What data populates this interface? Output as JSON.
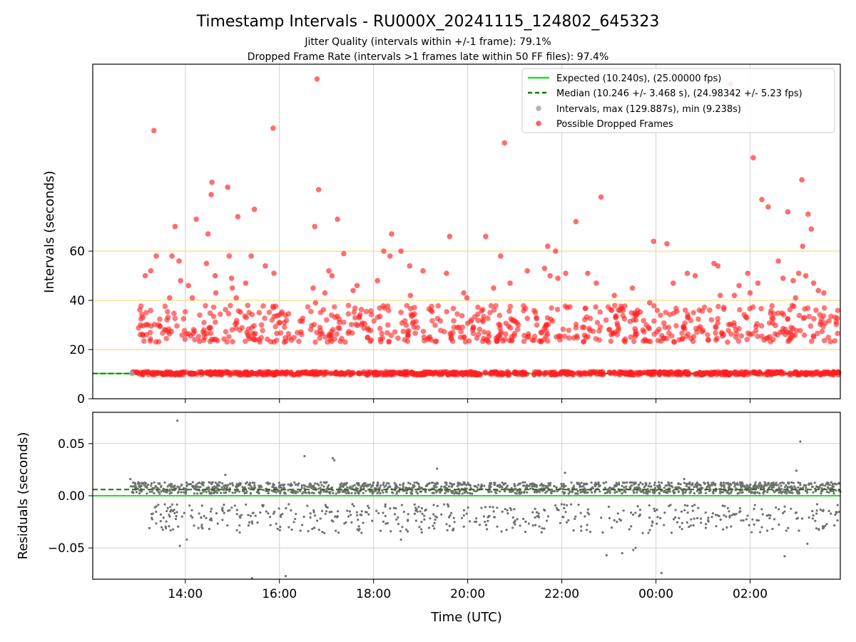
{
  "chart_data": {
    "type": "scatter",
    "title": "Timestamp Intervals - RU000X_20241115_124802_645323",
    "subtitle_lines": [
      "Jitter Quality (intervals within +/-1 frame): 79.1%",
      "Dropped Frame Rate (intervals >1 frames late within 50 FF files): 97.4%"
    ],
    "xlabel": "Time (UTC)",
    "x_range": [
      "2024-11-15T12:02:00Z",
      "2024-11-16T03:55:00Z"
    ],
    "x_ticks": [
      "14:00",
      "16:00",
      "18:00",
      "20:00",
      "22:00",
      "00:00",
      "02:00"
    ],
    "x_tick_times": [
      "2024-11-15T14:00:00Z",
      "2024-11-15T16:00:00Z",
      "2024-11-15T18:00:00Z",
      "2024-11-15T20:00:00Z",
      "2024-11-15T22:00:00Z",
      "2024-11-16T00:00:00Z",
      "2024-11-16T02:00:00Z"
    ],
    "grid": true,
    "panels": [
      {
        "id": "intervals",
        "ylabel": "Intervals (seconds)",
        "ylim": [
          0,
          136
        ],
        "y_ticks": [
          0,
          20,
          40,
          60
        ],
        "y_tick_labels": [
          "0",
          "20",
          "40",
          "60"
        ],
        "horizontal_reference_lines": [
          20,
          40,
          60
        ],
        "horizontal_reference_color": "#ffd77a",
        "legend_position": "top-right",
        "legend": [
          {
            "label": "Expected (10.240s), (25.00000 fps)",
            "style": "solid-line",
            "color": "#22dd22"
          },
          {
            "label": "Median (10.246 +/- 3.468 s), (24.98342 +/- 5.23 fps)",
            "style": "dashed-line",
            "color": "#008000"
          },
          {
            "label": "Intervals, max (129.887s), min (9.238s)",
            "style": "marker",
            "color": "#a0a0a0"
          },
          {
            "label": "Possible Dropped Frames",
            "style": "marker",
            "color": "#ff2020"
          }
        ],
        "expected_interval": 10.24,
        "median_interval": 10.246,
        "baseline_band": {
          "from": "2024-11-15T12:50:00Z",
          "to": "2024-11-16T03:55:00Z",
          "min": 9.7,
          "max": 11.0
        },
        "dropped_frame_points": [
          [
            "2024-11-15T13:20:00Z",
            109
          ],
          [
            "2024-11-15T14:34:00Z",
            88
          ],
          [
            "2024-11-15T14:33:00Z",
            83
          ],
          [
            "2024-11-15T14:54:00Z",
            86
          ],
          [
            "2024-11-15T15:52:00Z",
            110
          ],
          [
            "2024-11-15T16:48:00Z",
            130
          ],
          [
            "2024-11-15T16:50:00Z",
            85
          ],
          [
            "2024-11-15T20:47:00Z",
            104
          ],
          [
            "2024-11-15T22:50:00Z",
            82
          ],
          [
            "2024-11-16T01:35:00Z",
            128
          ],
          [
            "2024-11-16T02:04:00Z",
            98
          ],
          [
            "2024-11-16T03:06:00Z",
            89
          ],
          [
            "2024-11-16T02:15:00Z",
            81
          ],
          [
            "2024-11-16T02:23:00Z",
            78
          ],
          [
            "2024-11-16T03:14:00Z",
            75
          ],
          [
            "2024-11-16T02:48:00Z",
            76
          ],
          [
            "2024-11-15T15:28:00Z",
            77
          ],
          [
            "2024-11-15T14:14:00Z",
            73
          ],
          [
            "2024-11-15T15:07:00Z",
            74
          ],
          [
            "2024-11-15T13:47:00Z",
            70
          ],
          [
            "2024-11-15T14:29:00Z",
            67
          ],
          [
            "2024-11-15T16:45:00Z",
            70
          ],
          [
            "2024-11-15T17:14:00Z",
            73
          ],
          [
            "2024-11-15T18:23:00Z",
            67
          ],
          [
            "2024-11-15T19:37:00Z",
            66
          ],
          [
            "2024-11-15T20:23:00Z",
            66
          ],
          [
            "2024-11-15T22:18:00Z",
            72
          ],
          [
            "2024-11-15T23:57:00Z",
            64
          ],
          [
            "2024-11-16T00:14:00Z",
            63
          ],
          [
            "2024-11-16T03:18:00Z",
            69
          ],
          [
            "2024-11-16T03:07:00Z",
            62
          ],
          [
            "2024-11-15T21:42:00Z",
            62
          ],
          [
            "2024-11-15T21:52:00Z",
            60
          ],
          [
            "2024-11-15T18:13:00Z",
            60
          ],
          [
            "2024-11-15T18:35:00Z",
            60
          ],
          [
            "2024-11-15T18:21:00Z",
            58
          ],
          [
            "2024-11-15T17:22:00Z",
            59
          ],
          [
            "2024-11-15T13:23:00Z",
            58
          ],
          [
            "2024-11-15T13:43:00Z",
            58
          ],
          [
            "2024-11-15T15:24:00Z",
            58
          ],
          [
            "2024-11-15T14:56:00Z",
            58
          ],
          [
            "2024-11-15T20:42:00Z",
            58
          ],
          [
            "2024-11-15T13:52:00Z",
            56
          ],
          [
            "2024-11-15T14:27:00Z",
            55
          ],
          [
            "2024-11-15T15:42:00Z",
            54
          ],
          [
            "2024-11-15T18:46:00Z",
            54
          ],
          [
            "2024-11-16T01:14:00Z",
            55
          ],
          [
            "2024-11-16T01:19:00Z",
            54
          ],
          [
            "2024-11-16T02:36:00Z",
            56
          ],
          [
            "2024-11-15T13:16:00Z",
            52
          ],
          [
            "2024-11-15T15:53:00Z",
            51
          ],
          [
            "2024-11-15T19:03:00Z",
            52
          ],
          [
            "2024-11-15T19:33:00Z",
            51
          ],
          [
            "2024-11-15T21:16:00Z",
            52
          ],
          [
            "2024-11-15T21:38:00Z",
            53
          ],
          [
            "2024-11-15T22:05:00Z",
            51
          ],
          [
            "2024-11-15T22:33:00Z",
            51
          ],
          [
            "2024-11-16T00:40:00Z",
            51
          ],
          [
            "2024-11-16T01:57:00Z",
            51
          ],
          [
            "2024-11-16T03:02:00Z",
            51
          ],
          [
            "2024-11-16T03:11:00Z",
            50
          ],
          [
            "2024-11-15T13:09:00Z",
            50
          ],
          [
            "2024-11-15T14:38:00Z",
            50
          ],
          [
            "2024-11-15T14:59:00Z",
            49
          ],
          [
            "2024-11-15T17:03:00Z",
            52
          ],
          [
            "2024-11-15T17:07:00Z",
            50
          ],
          [
            "2024-11-16T00:50:00Z",
            50
          ],
          [
            "2024-11-16T02:42:00Z",
            49
          ],
          [
            "2024-11-15T21:45:00Z",
            50
          ],
          [
            "2024-11-15T21:55:00Z",
            49
          ],
          [
            "2024-11-15T13:54:00Z",
            48
          ],
          [
            "2024-11-15T15:17:00Z",
            47
          ],
          [
            "2024-11-15T18:05:00Z",
            48
          ],
          [
            "2024-11-15T20:54:00Z",
            47
          ],
          [
            "2024-11-15T22:44:00Z",
            47
          ],
          [
            "2024-11-16T00:22:00Z",
            47
          ],
          [
            "2024-11-16T02:10:00Z",
            47
          ],
          [
            "2024-11-16T02:55:00Z",
            48
          ],
          [
            "2024-11-16T03:21:00Z",
            47
          ],
          [
            "2024-11-15T14:04:00Z",
            46
          ],
          [
            "2024-11-15T15:00:00Z",
            45
          ],
          [
            "2024-11-15T16:43:00Z",
            45
          ],
          [
            "2024-11-15T17:39:00Z",
            46
          ],
          [
            "2024-11-15T20:33:00Z",
            45
          ],
          [
            "2024-11-15T23:30:00Z",
            45
          ],
          [
            "2024-11-16T01:46:00Z",
            46
          ],
          [
            "2024-11-16T03:27:00Z",
            44
          ],
          [
            "2024-11-15T14:39:00Z",
            43
          ],
          [
            "2024-11-15T16:58:00Z",
            43
          ],
          [
            "2024-11-15T17:34:00Z",
            44
          ],
          [
            "2024-11-15T18:47:00Z",
            42
          ],
          [
            "2024-11-15T19:55:00Z",
            43
          ],
          [
            "2024-11-15T23:07:00Z",
            42
          ],
          [
            "2024-11-16T01:22:00Z",
            42
          ],
          [
            "2024-11-16T01:40:00Z",
            42
          ],
          [
            "2024-11-16T02:00:00Z",
            43
          ],
          [
            "2024-11-16T03:34:00Z",
            43
          ],
          [
            "2024-11-15T13:40:00Z",
            41
          ],
          [
            "2024-11-15T14:09:00Z",
            41
          ],
          [
            "2024-11-15T15:05:00Z",
            41
          ],
          [
            "2024-11-15T19:59:00Z",
            41
          ],
          [
            "2024-11-16T02:58:00Z",
            41
          ],
          [
            "2024-11-15T23:52:00Z",
            39
          ],
          [
            "2024-11-15T16:46:00Z",
            39
          ]
        ],
        "dropped_frame_band": {
          "from": "2024-11-15T13:00:00Z",
          "to": "2024-11-16T03:52:00Z",
          "min": 23,
          "max": 38
        }
      },
      {
        "id": "residuals",
        "ylabel": "Residuals (seconds)",
        "ylim": [
          -0.08,
          0.08
        ],
        "y_ticks": [
          -0.05,
          0.0,
          0.05
        ],
        "y_tick_labels": [
          "−0.05",
          "0.00",
          "0.05"
        ],
        "expected_residual": 0.0,
        "median_residual": 0.006,
        "residual_color": "#707070",
        "main_band": {
          "from": "2024-11-15T12:50:00Z",
          "to": "2024-11-16T03:55:00Z",
          "min": 0.002,
          "max": 0.013
        },
        "negative_band": {
          "from": "2024-11-15T13:10:00Z",
          "to": "2024-11-16T03:55:00Z",
          "min": -0.036,
          "max": -0.008
        },
        "outliers": [
          [
            "2024-11-15T13:50:00Z",
            0.072
          ],
          [
            "2024-11-15T12:50:00Z",
            0.016
          ],
          [
            "2024-11-15T14:03:00Z",
            0.011
          ],
          [
            "2024-11-15T13:53:00Z",
            -0.048
          ],
          [
            "2024-11-15T14:02:00Z",
            -0.042
          ],
          [
            "2024-11-15T15:25:00Z",
            -0.079
          ],
          [
            "2024-11-15T16:08:00Z",
            -0.077
          ],
          [
            "2024-11-15T16:32:00Z",
            0.038
          ],
          [
            "2024-11-15T17:08:00Z",
            0.036
          ],
          [
            "2024-11-15T17:10:00Z",
            0.034
          ],
          [
            "2024-11-15T18:35:00Z",
            -0.042
          ],
          [
            "2024-11-15T19:21:00Z",
            0.026
          ],
          [
            "2024-11-15T22:04:00Z",
            0.022
          ],
          [
            "2024-11-15T22:57:00Z",
            -0.057
          ],
          [
            "2024-11-15T23:17:00Z",
            -0.055
          ],
          [
            "2024-11-15T23:34:00Z",
            -0.05
          ],
          [
            "2024-11-15T23:31:00Z",
            -0.052
          ],
          [
            "2024-11-16T00:07:00Z",
            -0.074
          ],
          [
            "2024-11-16T02:44:00Z",
            -0.058
          ],
          [
            "2024-11-16T03:04:00Z",
            0.052
          ],
          [
            "2024-11-16T02:59:00Z",
            0.024
          ],
          [
            "2024-11-16T03:13:00Z",
            -0.046
          ],
          [
            "2024-11-16T00:36:00Z",
            0.016
          ],
          [
            "2024-11-15T14:51:00Z",
            0.02
          ]
        ]
      }
    ]
  }
}
